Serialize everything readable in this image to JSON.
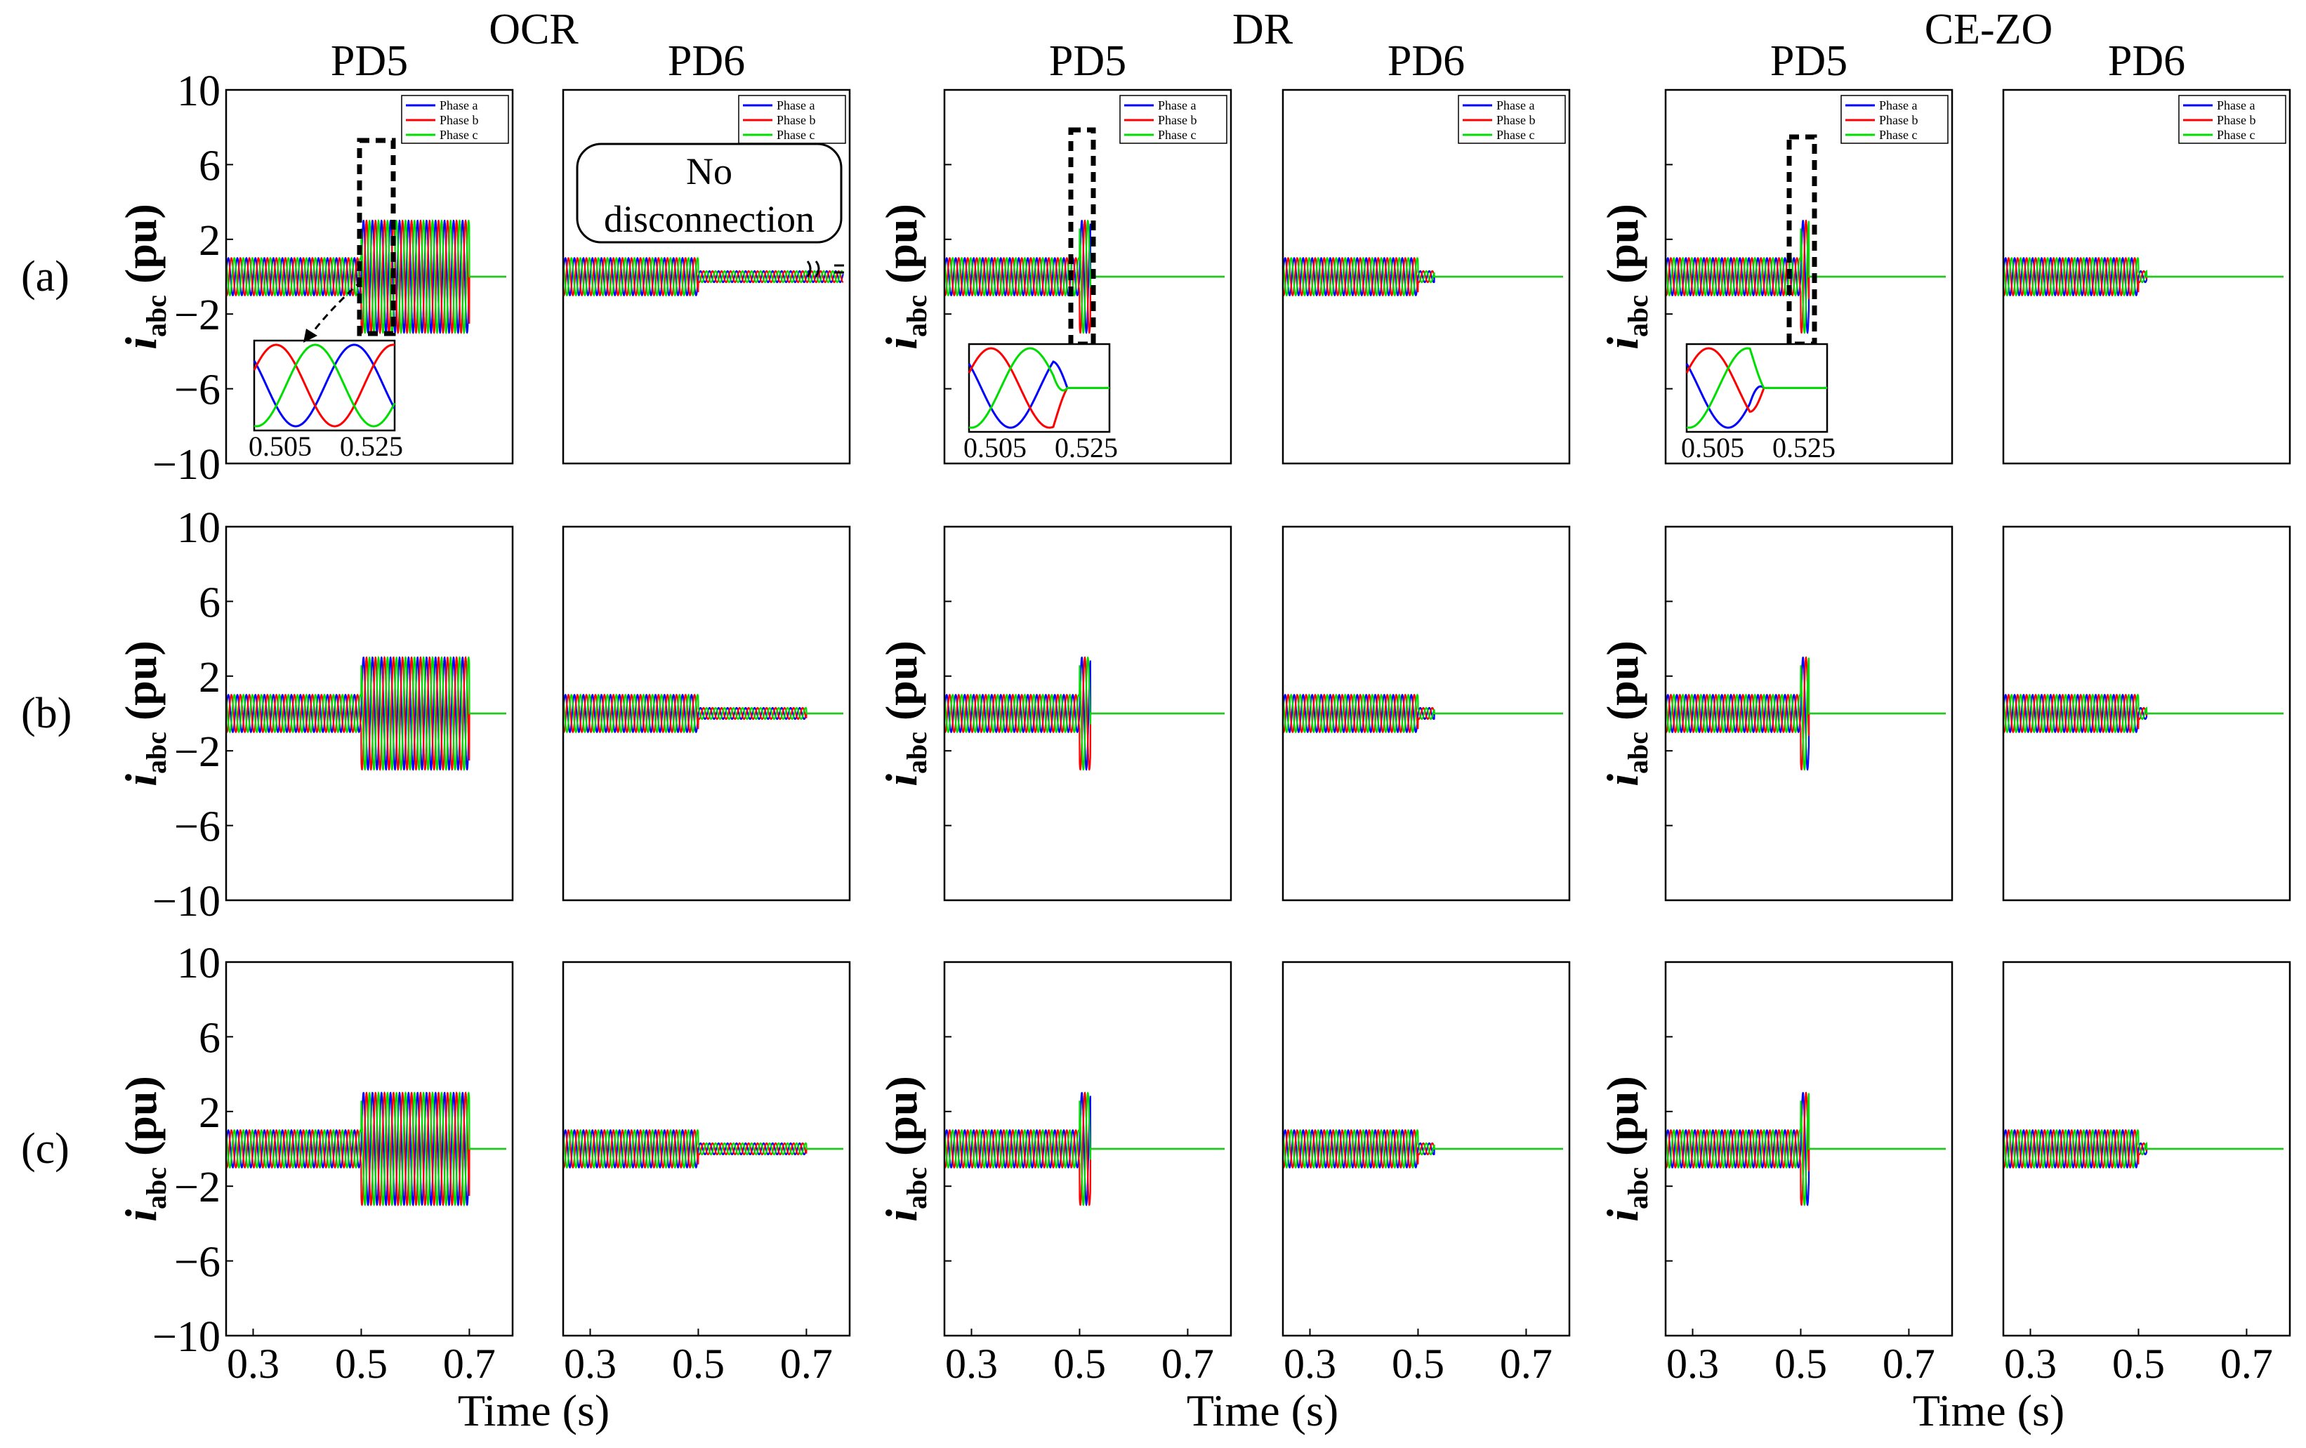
{
  "group_titles": [
    "OCR",
    "DR",
    "CE-ZO"
  ],
  "panel_titles": [
    "PD5",
    "PD6",
    "PD5",
    "PD6",
    "PD5",
    "PD6"
  ],
  "row_labels": [
    "(a)",
    "(b)",
    "(c)"
  ],
  "ylabel_main": "i",
  "ylabel_sub": "abc",
  "ylabel_unit": "(pu)",
  "xlabel": "Time (s)",
  "y_ticks": [
    "10",
    "6",
    "2",
    "−2",
    "−6",
    "−10"
  ],
  "x_ticks": [
    "0.3",
    "0.5",
    "0.7"
  ],
  "legend": [
    "Phase a",
    "Phase b",
    "Phase c"
  ],
  "inset_ticks": [
    "0.505",
    "0.525"
  ],
  "annotation": [
    "No",
    "disconnection"
  ],
  "colors": {
    "a": "#0000ff",
    "b": "#ff0000",
    "c": "#00dd00",
    "axes": "#000000"
  },
  "chart_data": {
    "type": "line",
    "title": "",
    "ylabel": "iabc (pu)",
    "xlabel": "Time (s)",
    "xlim": [
      0.25,
      0.78
    ],
    "ylim": [
      -10,
      10
    ],
    "series_names": [
      "Phase a",
      "Phase b",
      "Phase c"
    ],
    "description_of_signal": "three-phase sinusoidal currents, 120 degrees apart",
    "panels": [
      {
        "row": "(a)",
        "method": "OCR",
        "device": "PD5",
        "pre_fault_amp": 1,
        "fault_time": 0.5,
        "fault_amp": 3,
        "clear_time": 0.7,
        "post_fault_amp": 0
      },
      {
        "row": "(a)",
        "method": "OCR",
        "device": "PD6",
        "pre_fault_amp": 1,
        "fault_time": 0.5,
        "fault_amp": 0.3,
        "clear_time": null,
        "post_fault_amp": 0.3
      },
      {
        "row": "(a)",
        "method": "DR",
        "device": "PD5",
        "pre_fault_amp": 1,
        "fault_time": 0.5,
        "fault_amp": 3,
        "clear_time": 0.52,
        "post_fault_amp": 0
      },
      {
        "row": "(a)",
        "method": "DR",
        "device": "PD6",
        "pre_fault_amp": 1,
        "fault_time": 0.5,
        "fault_amp": 0.3,
        "clear_time": 0.53,
        "post_fault_amp": 0
      },
      {
        "row": "(a)",
        "method": "CE-ZO",
        "device": "PD5",
        "pre_fault_amp": 1,
        "fault_time": 0.5,
        "fault_amp": 3,
        "clear_time": 0.515,
        "post_fault_amp": 0
      },
      {
        "row": "(a)",
        "method": "CE-ZO",
        "device": "PD6",
        "pre_fault_amp": 1,
        "fault_time": 0.5,
        "fault_amp": 0.3,
        "clear_time": 0.515,
        "post_fault_amp": 0
      },
      {
        "row": "(b)",
        "method": "OCR",
        "device": "PD5",
        "pre_fault_amp": 1,
        "fault_time": 0.5,
        "fault_amp": 3,
        "clear_time": 0.7,
        "post_fault_amp": 0
      },
      {
        "row": "(b)",
        "method": "OCR",
        "device": "PD6",
        "pre_fault_amp": 1,
        "fault_time": 0.5,
        "fault_amp": 0.3,
        "clear_time": 0.7,
        "post_fault_amp": 0
      },
      {
        "row": "(b)",
        "method": "DR",
        "device": "PD5",
        "pre_fault_amp": 1,
        "fault_time": 0.5,
        "fault_amp": 3,
        "clear_time": 0.52,
        "post_fault_amp": 0
      },
      {
        "row": "(b)",
        "method": "DR",
        "device": "PD6",
        "pre_fault_amp": 1,
        "fault_time": 0.5,
        "fault_amp": 0.3,
        "clear_time": 0.53,
        "post_fault_amp": 0
      },
      {
        "row": "(b)",
        "method": "CE-ZO",
        "device": "PD5",
        "pre_fault_amp": 1,
        "fault_time": 0.5,
        "fault_amp": 3,
        "clear_time": 0.515,
        "post_fault_amp": 0
      },
      {
        "row": "(b)",
        "method": "CE-ZO",
        "device": "PD6",
        "pre_fault_amp": 1,
        "fault_time": 0.5,
        "fault_amp": 0.3,
        "clear_time": 0.515,
        "post_fault_amp": 0
      },
      {
        "row": "(c)",
        "method": "OCR",
        "device": "PD5",
        "pre_fault_amp": 1,
        "fault_time": 0.5,
        "fault_amp": 3,
        "clear_time": 0.7,
        "post_fault_amp": 0
      },
      {
        "row": "(c)",
        "method": "OCR",
        "device": "PD6",
        "pre_fault_amp": 1,
        "fault_time": 0.5,
        "fault_amp": 0.3,
        "clear_time": 0.7,
        "post_fault_amp": 0
      },
      {
        "row": "(c)",
        "method": "DR",
        "device": "PD5",
        "pre_fault_amp": 1,
        "fault_time": 0.5,
        "fault_amp": 3,
        "clear_time": 0.52,
        "post_fault_amp": 0
      },
      {
        "row": "(c)",
        "method": "DR",
        "device": "PD6",
        "pre_fault_amp": 1,
        "fault_time": 0.5,
        "fault_amp": 0.3,
        "clear_time": 0.53,
        "post_fault_amp": 0
      },
      {
        "row": "(c)",
        "method": "CE-ZO",
        "device": "PD5",
        "pre_fault_amp": 1,
        "fault_time": 0.5,
        "fault_amp": 3,
        "clear_time": 0.515,
        "post_fault_amp": 0
      },
      {
        "row": "(c)",
        "method": "CE-ZO",
        "device": "PD6",
        "pre_fault_amp": 1,
        "fault_time": 0.5,
        "fault_amp": 0.3,
        "clear_time": 0.515,
        "post_fault_amp": 0
      }
    ],
    "insets": [
      {
        "panel": "(a) OCR PD5",
        "xlim": [
          0.505,
          0.525
        ],
        "behavior": "steady fault currents, amplitude 3"
      },
      {
        "panel": "(a) DR PD5",
        "xlim": [
          0.505,
          0.525
        ],
        "behavior": "currents interrupted near 0.517 s"
      },
      {
        "panel": "(a) CE-ZO PD5",
        "xlim": [
          0.505,
          0.525
        ],
        "behavior": "currents interrupted near 0.514 s"
      }
    ]
  }
}
